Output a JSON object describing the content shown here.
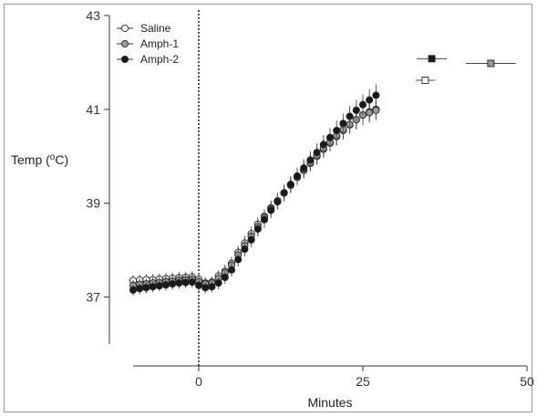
{
  "chart_data": {
    "type": "scatter",
    "xlabel": "Minutes",
    "ylabel_main": "Temp (",
    "ylabel_sup": "o",
    "ylabel_end": "C)",
    "xlim": [
      -10,
      50
    ],
    "ylim": [
      36,
      43
    ],
    "xticks": [
      0,
      25,
      50
    ],
    "yticks": [
      37,
      39,
      41,
      43
    ],
    "grid": false,
    "legend_position": "top-left",
    "vline_x": 0,
    "series": [
      {
        "name": "Saline",
        "marker_fill": "#ffffff",
        "x": [
          -10,
          -9,
          -8,
          -7,
          -6,
          -5,
          -4,
          -3,
          -2,
          -1,
          0,
          1,
          2,
          3,
          4,
          5,
          6,
          7,
          8,
          9,
          10,
          11,
          12,
          13,
          14,
          15,
          16,
          17,
          18,
          19,
          20,
          21,
          22,
          23,
          24,
          25,
          26,
          27
        ],
        "y": [
          37.35,
          37.36,
          37.37,
          37.37,
          37.38,
          37.39,
          37.4,
          37.41,
          37.42,
          37.43,
          37.38,
          37.3,
          37.32,
          37.45,
          37.55,
          37.72,
          37.95,
          38.15,
          38.35,
          38.55,
          38.72,
          38.9,
          39.05,
          39.22,
          39.38,
          39.55,
          39.7,
          39.85,
          40.0,
          40.15,
          40.28,
          40.42,
          40.55,
          40.67,
          40.78,
          40.88,
          40.95,
          41.0
        ],
        "err": [
          0.12,
          0.12,
          0.12,
          0.12,
          0.12,
          0.12,
          0.12,
          0.12,
          0.12,
          0.12,
          0.12,
          0.12,
          0.12,
          0.12,
          0.14,
          0.14,
          0.14,
          0.15,
          0.15,
          0.15,
          0.15,
          0.16,
          0.16,
          0.16,
          0.16,
          0.17,
          0.17,
          0.17,
          0.18,
          0.18,
          0.18,
          0.19,
          0.19,
          0.19,
          0.2,
          0.2,
          0.2,
          0.2
        ]
      },
      {
        "name": "Amph-1",
        "marker_fill": "#9a9a9a",
        "x": [
          -10,
          -9,
          -8,
          -7,
          -6,
          -5,
          -4,
          -3,
          -2,
          -1,
          0,
          1,
          2,
          3,
          4,
          5,
          6,
          7,
          8,
          9,
          10,
          11,
          12,
          13,
          14,
          15,
          16,
          17,
          18,
          19,
          20,
          21,
          22,
          23,
          24,
          25,
          26,
          27
        ],
        "y": [
          37.25,
          37.27,
          37.28,
          37.3,
          37.31,
          37.33,
          37.34,
          37.36,
          37.37,
          37.38,
          37.33,
          37.28,
          37.3,
          37.4,
          37.52,
          37.68,
          37.9,
          38.1,
          38.3,
          38.5,
          38.7,
          38.88,
          39.05,
          39.22,
          39.4,
          39.57,
          39.72,
          39.87,
          40.02,
          40.17,
          40.3,
          40.44,
          40.57,
          40.68,
          40.78,
          40.88,
          40.93,
          40.98
        ],
        "err": [
          0.12,
          0.12,
          0.12,
          0.12,
          0.12,
          0.12,
          0.12,
          0.12,
          0.12,
          0.12,
          0.12,
          0.12,
          0.12,
          0.13,
          0.14,
          0.14,
          0.15,
          0.15,
          0.15,
          0.16,
          0.16,
          0.16,
          0.17,
          0.17,
          0.17,
          0.18,
          0.18,
          0.18,
          0.19,
          0.19,
          0.19,
          0.2,
          0.2,
          0.2,
          0.21,
          0.21,
          0.21,
          0.21
        ]
      },
      {
        "name": "Amph-2",
        "marker_fill": "#1a1a1a",
        "x": [
          -10,
          -9,
          -8,
          -7,
          -6,
          -5,
          -4,
          -3,
          -2,
          -1,
          0,
          1,
          2,
          3,
          4,
          5,
          6,
          7,
          8,
          9,
          10,
          11,
          12,
          13,
          14,
          15,
          16,
          17,
          18,
          19,
          20,
          21,
          22,
          23,
          24,
          25,
          26,
          27
        ],
        "y": [
          37.15,
          37.18,
          37.2,
          37.22,
          37.24,
          37.26,
          37.28,
          37.3,
          37.31,
          37.32,
          37.25,
          37.2,
          37.22,
          37.3,
          37.42,
          37.58,
          37.8,
          38.02,
          38.22,
          38.45,
          38.65,
          38.85,
          39.03,
          39.22,
          39.4,
          39.58,
          39.75,
          39.92,
          40.08,
          40.25,
          40.4,
          40.55,
          40.7,
          40.85,
          40.98,
          41.1,
          41.2,
          41.3
        ],
        "err": [
          0.12,
          0.12,
          0.12,
          0.12,
          0.12,
          0.12,
          0.12,
          0.12,
          0.12,
          0.12,
          0.12,
          0.12,
          0.12,
          0.13,
          0.14,
          0.14,
          0.15,
          0.15,
          0.16,
          0.16,
          0.17,
          0.17,
          0.17,
          0.18,
          0.18,
          0.18,
          0.19,
          0.19,
          0.2,
          0.2,
          0.2,
          0.21,
          0.21,
          0.22,
          0.22,
          0.22,
          0.23,
          0.23
        ]
      }
    ],
    "endpoints": [
      {
        "series": "Amph-2",
        "x": 35.5,
        "y": 42.08,
        "xerr": 2.3,
        "marker_fill": "#1a1a1a"
      },
      {
        "series": "Amph-1",
        "x": 44.5,
        "y": 41.98,
        "xerr": 3.8,
        "marker_fill": "#9a9a9a"
      },
      {
        "series": "Saline",
        "x": 34.5,
        "y": 41.62,
        "xerr": 1.5,
        "marker_fill": "#ffffff"
      }
    ]
  }
}
